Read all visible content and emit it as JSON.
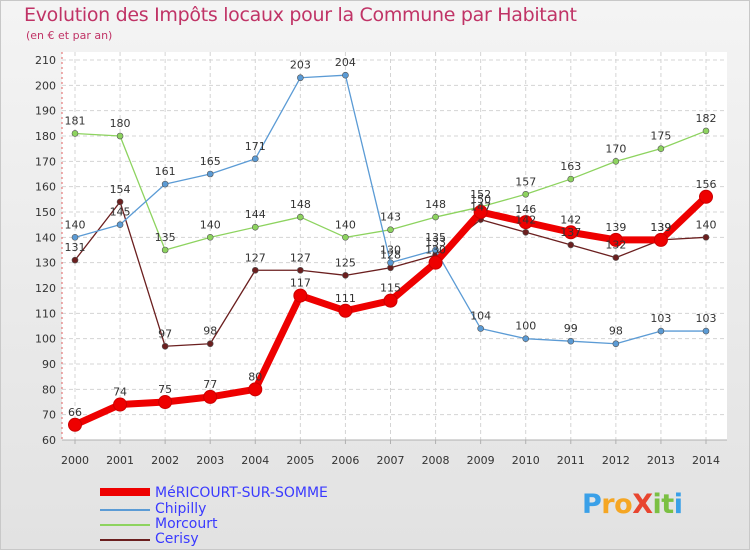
{
  "chart_data": {
    "type": "line",
    "title": "Evolution des Impôts locaux pour la Commune par Habitant",
    "subtitle": "(en € et par an)",
    "x": [
      "2000",
      "2001",
      "2002",
      "2003",
      "2004",
      "2005",
      "2006",
      "2007",
      "2008",
      "2009",
      "2010",
      "2011",
      "2012",
      "2013",
      "2014"
    ],
    "ylim": [
      60,
      210
    ],
    "yticks": [
      "60",
      "70",
      "80",
      "90",
      "100",
      "110",
      "120",
      "130",
      "140",
      "150",
      "160",
      "170",
      "180",
      "190",
      "200",
      "210"
    ],
    "grid": true,
    "legend_position": "bottom-left",
    "series": [
      {
        "name": "MéRICOURT-SUR-SOMME",
        "color": "#ee0000",
        "values": [
          66,
          74,
          75,
          77,
          80,
          117,
          111,
          115,
          130,
          150,
          146,
          142,
          139,
          139,
          156
        ],
        "labels": [
          "66",
          "74",
          "75",
          "77",
          "80",
          "117",
          "111",
          "115",
          "130",
          "150",
          "146",
          "142",
          "139",
          "139",
          "156"
        ]
      },
      {
        "name": "Chipilly",
        "color": "#5b9bd5",
        "values": [
          140,
          145,
          161,
          165,
          171,
          203,
          204,
          130,
          135,
          104,
          100,
          99,
          98,
          103,
          103
        ],
        "labels": [
          "140",
          "145",
          "161",
          "165",
          "171",
          "203",
          "204",
          "130",
          "135",
          "104",
          "100",
          "99",
          "98",
          "103",
          "103"
        ]
      },
      {
        "name": "Morcourt",
        "color": "#8dd35f",
        "values": [
          181,
          180,
          135,
          140,
          144,
          148,
          140,
          143,
          148,
          152,
          157,
          163,
          170,
          175,
          182
        ],
        "labels": [
          "181",
          "180",
          "135",
          "140",
          "144",
          "148",
          "140",
          "143",
          "148",
          "152",
          "157",
          "163",
          "170",
          "175",
          "182"
        ]
      },
      {
        "name": "Cerisy",
        "color": "#6b1f1f",
        "values": [
          131,
          154,
          97,
          98,
          127,
          127,
          125,
          128,
          133,
          147,
          142,
          137,
          132,
          139,
          140
        ],
        "labels": [
          "131",
          "154",
          "97",
          "98",
          "127",
          "127",
          "125",
          "128",
          "133",
          "147",
          "142",
          "137",
          "132",
          "139",
          "140"
        ]
      }
    ]
  },
  "logo": {
    "text": "ProXiti",
    "letters": [
      "P",
      "r",
      "o",
      "X",
      "i",
      "t",
      "i"
    ]
  }
}
